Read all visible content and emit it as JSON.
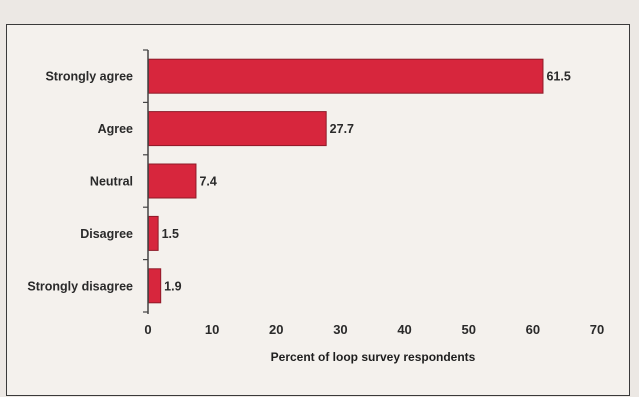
{
  "chart_data": {
    "type": "bar",
    "orientation": "horizontal",
    "categories": [
      "Strongly agree",
      "Agree",
      "Neutral",
      "Disagree",
      "Strongly disagree"
    ],
    "values": [
      61.5,
      27.7,
      7.4,
      1.5,
      1.9
    ],
    "data_labels": [
      "61.5",
      "27.7",
      "7.4",
      "1.5",
      "1.9"
    ],
    "title": "",
    "xlabel": "Percent of loop survey respondents",
    "ylabel": "",
    "xlim": [
      0,
      70
    ],
    "xticks": [
      "0",
      "10",
      "20",
      "30",
      "40",
      "50",
      "60",
      "70"
    ],
    "grid": false,
    "legend": "none",
    "bar_color": "#d7263d",
    "bar_edge_color": "#8e1a28"
  }
}
